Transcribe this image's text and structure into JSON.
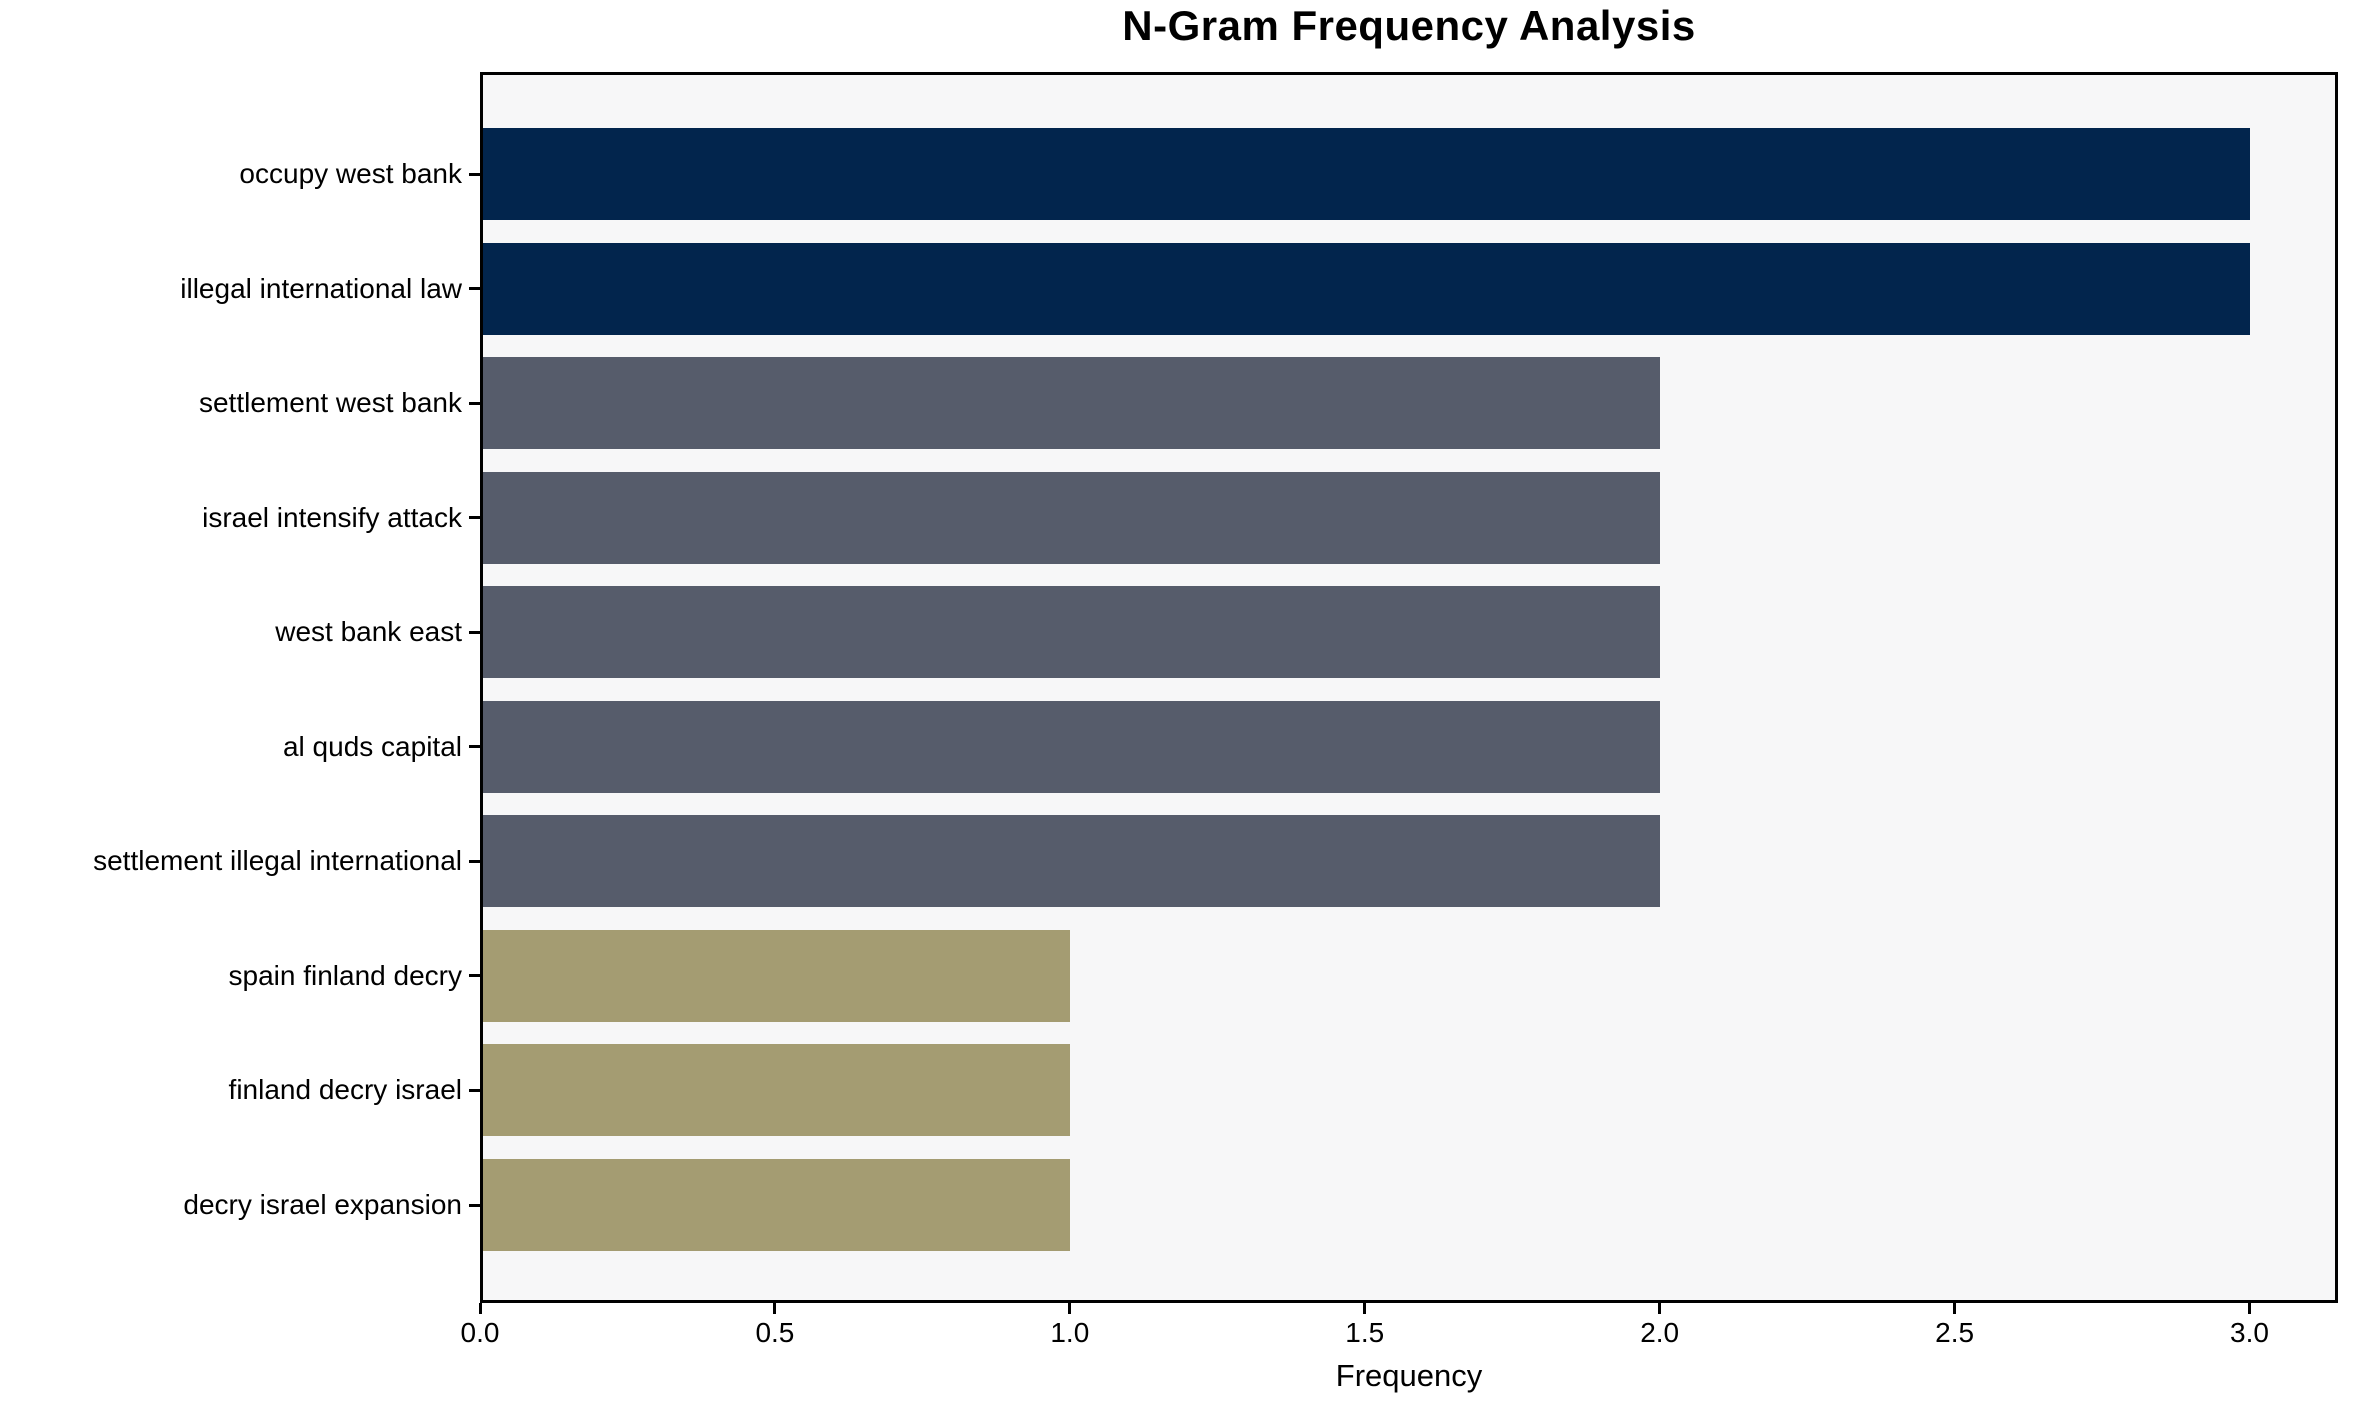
{
  "chart_data": {
    "type": "bar",
    "orientation": "horizontal",
    "title": "N-Gram Frequency Analysis",
    "xlabel": "Frequency",
    "ylabel": "",
    "categories": [
      "occupy west bank",
      "illegal international law",
      "settlement west bank",
      "israel intensify attack",
      "west bank east",
      "al quds capital",
      "settlement illegal international",
      "spain finland decry",
      "finland decry israel",
      "decry israel expansion"
    ],
    "values": [
      3,
      3,
      2,
      2,
      2,
      2,
      2,
      1,
      1,
      1
    ],
    "bar_colors": [
      "#02254d",
      "#02254d",
      "#565c6b",
      "#565c6b",
      "#565c6b",
      "#565c6b",
      "#565c6b",
      "#a49c72",
      "#a49c72",
      "#a49c72"
    ],
    "xlim": [
      0,
      3.15
    ],
    "xticks": [
      0.0,
      0.5,
      1.0,
      1.5,
      2.0,
      2.5,
      3.0
    ],
    "xtick_labels": [
      "0.0",
      "0.5",
      "1.0",
      "1.5",
      "2.0",
      "2.5",
      "3.0"
    ],
    "grid": false,
    "legend": null,
    "colors": {
      "frequency_3": "#02254d",
      "frequency_2": "#565c6b",
      "frequency_1": "#a49c72",
      "plot_background": "#f7f7f8",
      "figure_background": "#ffffff",
      "spine": "#000000",
      "text": "#000000"
    }
  }
}
